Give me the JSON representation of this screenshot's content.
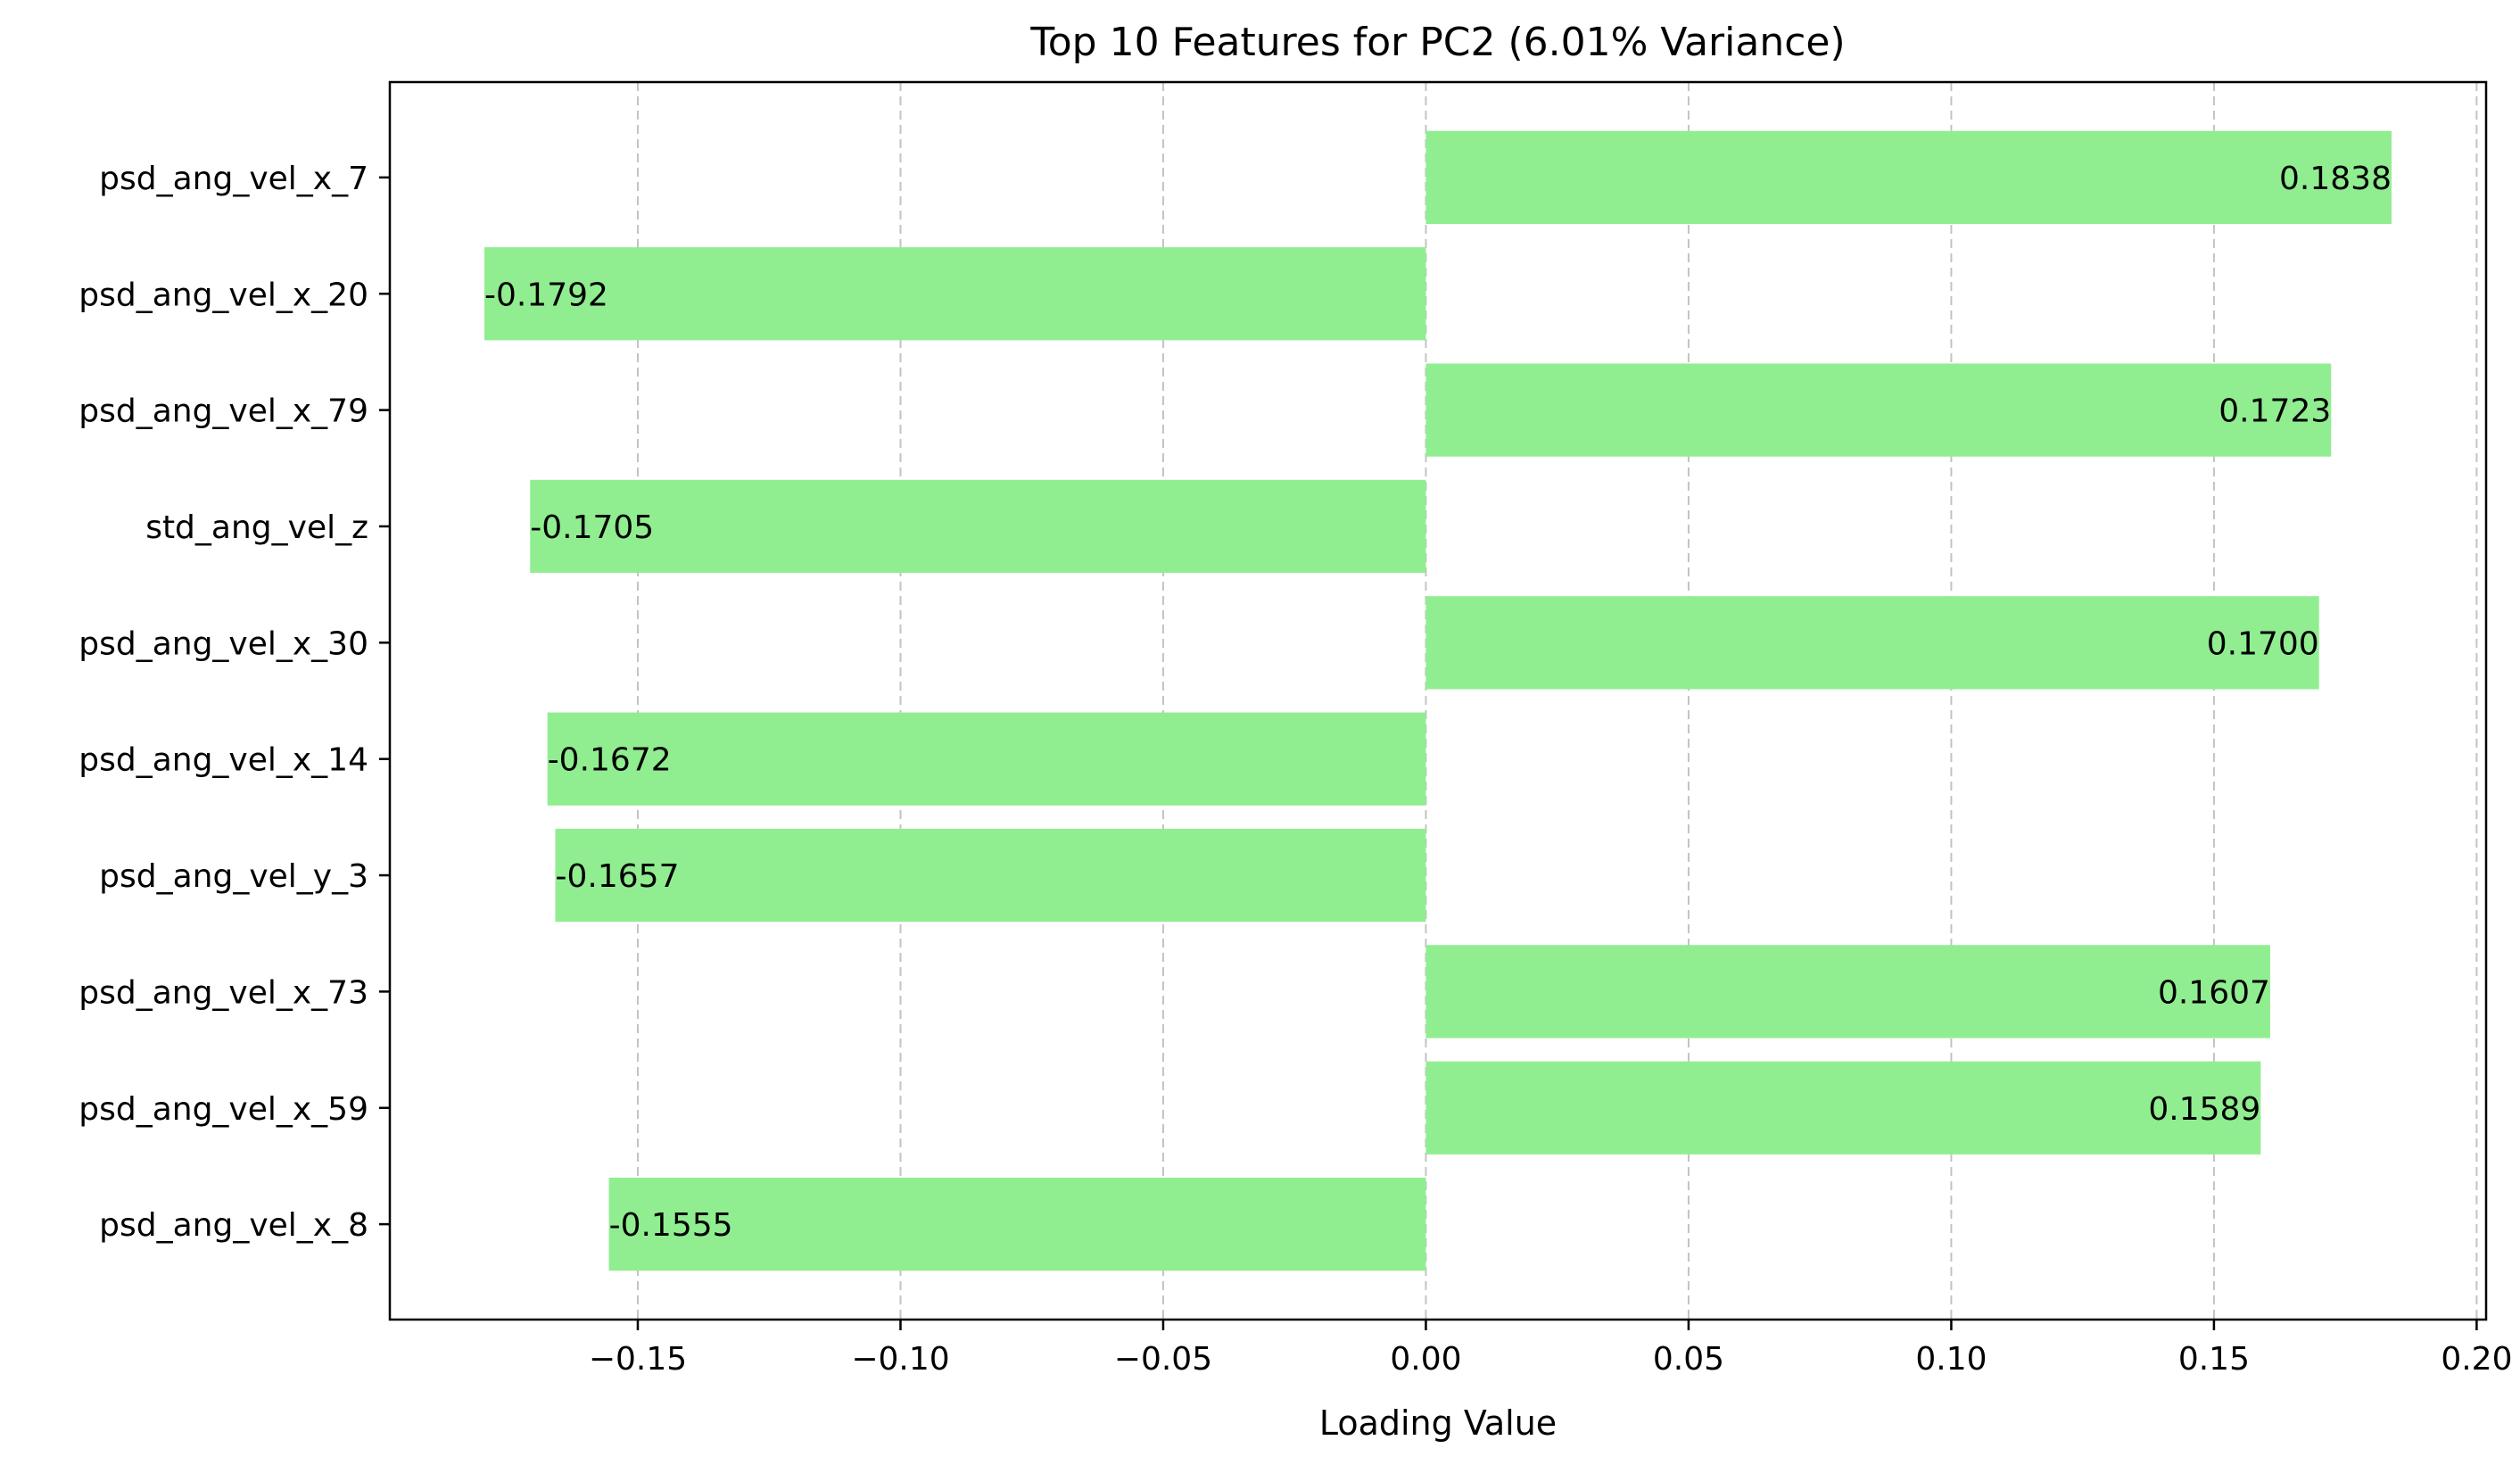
{
  "chart_data": {
    "type": "bar",
    "orientation": "horizontal",
    "title": "Top 10 Features for PC2 (6.01% Variance)",
    "xlabel": "Loading Value",
    "ylabel": "",
    "xlim": [
      -0.1972,
      0.2018
    ],
    "x_ticks": [
      -0.15,
      -0.1,
      -0.05,
      0.0,
      0.05,
      0.1,
      0.15,
      0.2
    ],
    "x_tick_labels": [
      "−0.15",
      "−0.10",
      "−0.05",
      "0.00",
      "0.05",
      "0.10",
      "0.15",
      "0.20"
    ],
    "grid": {
      "x": true,
      "y": false,
      "style": "dashed"
    },
    "bar_color": "#90ee90",
    "categories": [
      "psd_ang_vel_x_7",
      "psd_ang_vel_x_20",
      "psd_ang_vel_x_79",
      "std_ang_vel_z",
      "psd_ang_vel_x_30",
      "psd_ang_vel_x_14",
      "psd_ang_vel_y_3",
      "psd_ang_vel_x_73",
      "psd_ang_vel_x_59",
      "psd_ang_vel_x_8"
    ],
    "values": [
      0.1838,
      -0.1792,
      0.1723,
      -0.1705,
      0.17,
      -0.1672,
      -0.1657,
      0.1607,
      0.1589,
      -0.1555
    ],
    "value_labels": [
      "0.1838",
      "-0.1792",
      "0.1723",
      "-0.1705",
      "0.1700",
      "-0.1672",
      "-0.1657",
      "0.1607",
      "0.1589",
      "-0.1555"
    ]
  }
}
